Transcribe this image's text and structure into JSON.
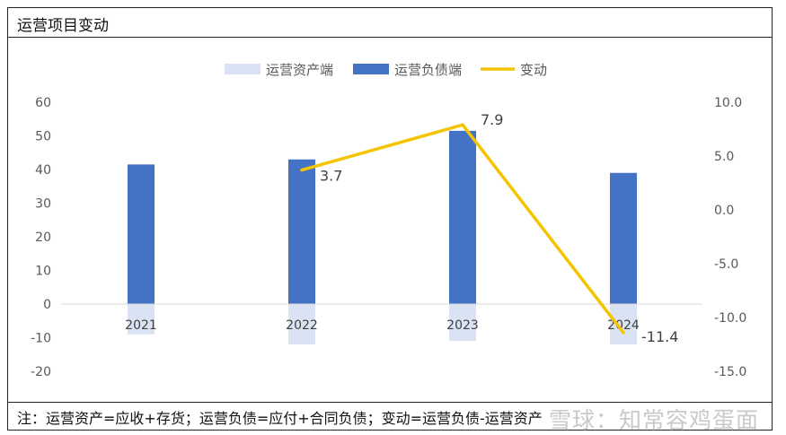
{
  "title": "运营项目变动",
  "note": "注：运营资产=应收+存货；运营负债=应付+合同负债；变动=运营负债-运营资产",
  "watermark": "雪球：知常容鸡蛋面",
  "colors": {
    "assets": "#dae3f3",
    "liabilities": "#4472c4",
    "change": "#f5c400"
  },
  "chart_data": {
    "type": "bar",
    "categories": [
      "2021",
      "2022",
      "2023",
      "2024"
    ],
    "series": [
      {
        "name": "运营资产端",
        "type": "bar",
        "axis": "left",
        "values": [
          -9,
          -12,
          -11,
          -12
        ]
      },
      {
        "name": "运营负债端",
        "type": "bar",
        "axis": "left",
        "values": [
          41.5,
          43,
          51.5,
          39
        ]
      },
      {
        "name": "变动",
        "type": "line",
        "axis": "right",
        "values": [
          null,
          3.7,
          7.9,
          -11.4
        ]
      }
    ],
    "data_labels": [
      "",
      "3.7",
      "7.9",
      "-11.4"
    ],
    "y_left": {
      "min": -20,
      "max": 60,
      "ticks": [
        "60",
        "50",
        "40",
        "30",
        "20",
        "10",
        "0",
        "-10",
        "-20"
      ]
    },
    "y_right": {
      "min": -15,
      "max": 10,
      "ticks": [
        "10.0",
        "5.0",
        "0.0",
        "-5.0",
        "-10.0",
        "-15.0"
      ]
    },
    "legend": [
      "运营资产端",
      "运营负债端",
      "变动"
    ],
    "legend_position": "top-center",
    "grid": false
  }
}
